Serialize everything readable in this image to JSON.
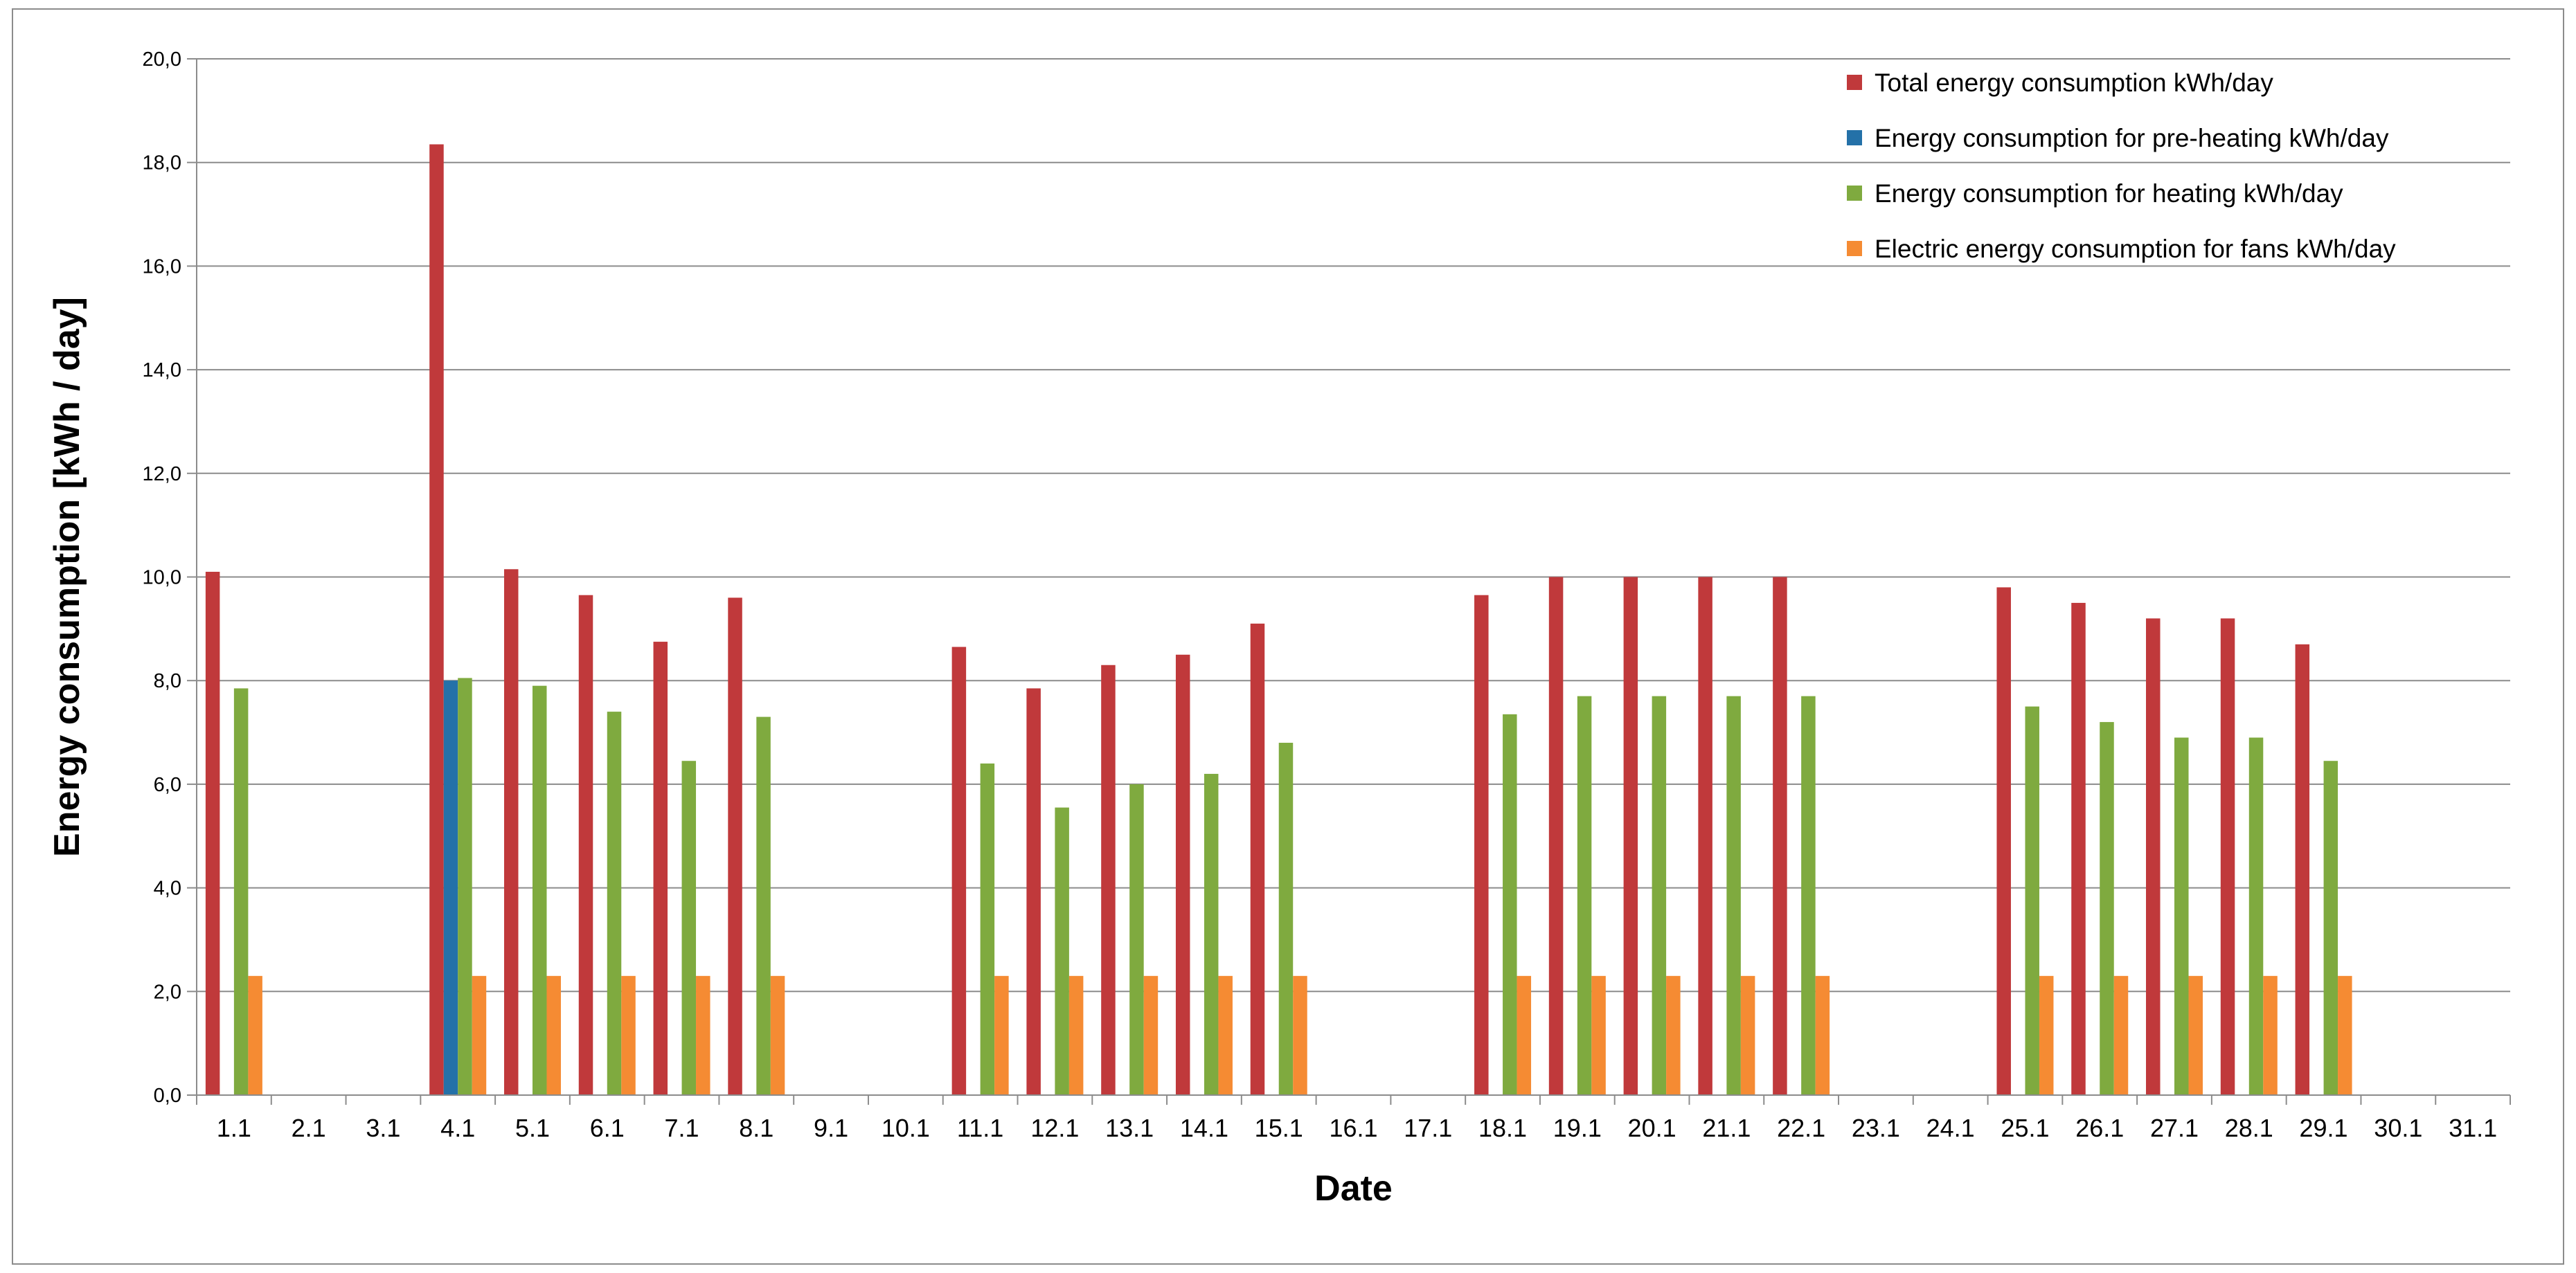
{
  "chart_data": {
    "type": "bar",
    "title": "",
    "xlabel": "Date",
    "ylabel": "Energy consumption [kWh / day]",
    "ylim": [
      0,
      20
    ],
    "y_ticks": [
      "0,0",
      "2,0",
      "4,0",
      "6,0",
      "8,0",
      "10,0",
      "12,0",
      "14,0",
      "16,0",
      "18,0",
      "20,0"
    ],
    "grid": true,
    "legend_position": "top-right",
    "categories": [
      "1.1",
      "2.1",
      "3.1",
      "4.1",
      "5.1",
      "6.1",
      "7.1",
      "8.1",
      "9.1",
      "10.1",
      "11.1",
      "12.1",
      "13.1",
      "14.1",
      "15.1",
      "16.1",
      "17.1",
      "18.1",
      "19.1",
      "20.1",
      "21.1",
      "22.1",
      "23.1",
      "24.1",
      "25.1",
      "26.1",
      "27.1",
      "28.1",
      "29.1",
      "30.1",
      "31.1"
    ],
    "series": [
      {
        "name": "Total energy consumption kWh/day",
        "color": "#c0393b",
        "values": [
          10.1,
          null,
          null,
          18.35,
          10.15,
          9.65,
          8.75,
          9.6,
          null,
          null,
          8.65,
          7.85,
          8.3,
          8.5,
          9.1,
          null,
          null,
          9.65,
          10.0,
          10.0,
          10.0,
          10.0,
          null,
          null,
          9.8,
          9.5,
          9.2,
          9.2,
          8.7,
          null,
          null
        ]
      },
      {
        "name": "Energy consumption for pre-heating kWh/day",
        "color": "#2471a8",
        "values": [
          null,
          null,
          null,
          8.0,
          null,
          null,
          null,
          null,
          null,
          null,
          null,
          null,
          null,
          null,
          null,
          null,
          null,
          null,
          null,
          null,
          null,
          null,
          null,
          null,
          null,
          null,
          null,
          null,
          null,
          null,
          null
        ]
      },
      {
        "name": "Energy consumption for heating kWh/day",
        "color": "#7faa3f",
        "values": [
          7.85,
          null,
          null,
          8.05,
          7.9,
          7.4,
          6.45,
          7.3,
          null,
          null,
          6.4,
          5.55,
          6.0,
          6.2,
          6.8,
          null,
          null,
          7.35,
          7.7,
          7.7,
          7.7,
          7.7,
          null,
          null,
          7.5,
          7.2,
          6.9,
          6.9,
          6.45,
          null,
          null
        ]
      },
      {
        "name": "Electric energy consumption for fans kWh/day",
        "color": "#f58b33",
        "values": [
          2.3,
          null,
          null,
          2.3,
          2.3,
          2.3,
          2.3,
          2.3,
          null,
          null,
          2.3,
          2.3,
          2.3,
          2.3,
          2.3,
          null,
          null,
          2.3,
          2.3,
          2.3,
          2.3,
          2.3,
          null,
          null,
          2.3,
          2.3,
          2.3,
          2.3,
          2.3,
          null,
          null
        ]
      }
    ]
  }
}
